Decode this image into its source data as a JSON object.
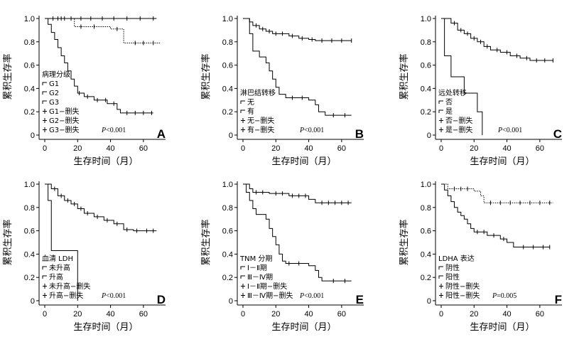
{
  "chart_data": [
    {
      "type": "line",
      "panel": "A",
      "ylabel": "累积生存率",
      "xlabel": "生存时间（月）",
      "xlim": [
        0,
        70
      ],
      "ylim": [
        0,
        1.0
      ],
      "xticks": [
        "0",
        "20",
        "40",
        "60"
      ],
      "yticks": [
        "0",
        "0.2",
        "0.4",
        "0.6",
        "0.8",
        "1.0"
      ],
      "legend_title": "病理分级",
      "legend_items": [
        "G1",
        "G2",
        "G3",
        "G1−删失",
        "G2−删失",
        "G3−删失"
      ],
      "p_value": "<0.001",
      "p_label": "P",
      "series": [
        {
          "style": "solid",
          "points": [
            [
              0,
              1.0
            ],
            [
              60,
              1.0
            ],
            [
              68,
              1.0
            ]
          ],
          "censor": [
            5,
            8,
            12,
            16,
            22,
            28,
            35,
            42,
            50,
            58,
            66
          ]
        },
        {
          "style": "dotted",
          "points": [
            [
              0,
              1.0
            ],
            [
              15,
              1.0
            ],
            [
              18,
              0.93
            ],
            [
              38,
              0.93
            ],
            [
              40,
              0.91
            ],
            [
              46,
              0.91
            ],
            [
              48,
              0.79
            ],
            [
              70,
              0.79
            ]
          ],
          "censor": [
            10,
            22,
            30,
            44,
            55,
            60,
            66
          ]
        },
        {
          "style": "solid",
          "points": [
            [
              0,
              1.0
            ],
            [
              2,
              0.95
            ],
            [
              4,
              0.88
            ],
            [
              6,
              0.82
            ],
            [
              8,
              0.75
            ],
            [
              10,
              0.68
            ],
            [
              12,
              0.62
            ],
            [
              14,
              0.55
            ],
            [
              16,
              0.48
            ],
            [
              18,
              0.42
            ],
            [
              20,
              0.36
            ],
            [
              24,
              0.33
            ],
            [
              30,
              0.3
            ],
            [
              38,
              0.27
            ],
            [
              44,
              0.22
            ],
            [
              46,
              0.19
            ],
            [
              66,
              0.19
            ]
          ],
          "censor": [
            21,
            26,
            32,
            37,
            42,
            50,
            55,
            60,
            65
          ]
        }
      ]
    },
    {
      "type": "line",
      "panel": "B",
      "ylabel": "累积生存率",
      "xlabel": "生存时间（月）",
      "xlim": [
        0,
        70
      ],
      "ylim": [
        0,
        1.0
      ],
      "xticks": [
        "0",
        "20",
        "40",
        "60"
      ],
      "yticks": [
        "0",
        "0.2",
        "0.4",
        "0.6",
        "0.8",
        "1.0"
      ],
      "legend_title": "淋巴结转移",
      "legend_items": [
        "无",
        "有",
        "无−删失",
        "有−删失"
      ],
      "p_value": "<0.001",
      "p_label": "P",
      "series": [
        {
          "style": "solid",
          "points": [
            [
              0,
              1.0
            ],
            [
              4,
              0.97
            ],
            [
              6,
              0.94
            ],
            [
              10,
              0.91
            ],
            [
              14,
              0.89
            ],
            [
              18,
              0.87
            ],
            [
              28,
              0.85
            ],
            [
              34,
              0.83
            ],
            [
              40,
              0.82
            ],
            [
              44,
              0.81
            ],
            [
              66,
              0.81
            ]
          ],
          "censor": [
            8,
            12,
            16,
            20,
            24,
            30,
            36,
            42,
            48,
            54,
            60,
            66
          ]
        },
        {
          "style": "solid",
          "points": [
            [
              0,
              1.0
            ],
            [
              4,
              0.87
            ],
            [
              6,
              0.72
            ],
            [
              10,
              0.67
            ],
            [
              14,
              0.62
            ],
            [
              16,
              0.55
            ],
            [
              18,
              0.48
            ],
            [
              20,
              0.41
            ],
            [
              22,
              0.35
            ],
            [
              26,
              0.32
            ],
            [
              40,
              0.3
            ],
            [
              44,
              0.26
            ],
            [
              46,
              0.2
            ],
            [
              50,
              0.17
            ],
            [
              66,
              0.17
            ]
          ],
          "censor": [
            30,
            36,
            55,
            62
          ]
        }
      ]
    },
    {
      "type": "line",
      "panel": "C",
      "ylabel": "累积生存率",
      "xlabel": "生存时间（月）",
      "xlim": [
        0,
        70
      ],
      "ylim": [
        0,
        1.0
      ],
      "xticks": [
        "0",
        "20",
        "40",
        "60"
      ],
      "yticks": [
        "0",
        "0.2",
        "0.4",
        "0.6",
        "0.8",
        "1.0"
      ],
      "legend_title": "远处转移",
      "legend_items": [
        "否",
        "是",
        "否−删失",
        "是−删失"
      ],
      "p_value": "<0.001",
      "p_label": "P",
      "series": [
        {
          "style": "solid",
          "points": [
            [
              0,
              1.0
            ],
            [
              6,
              0.96
            ],
            [
              10,
              0.9
            ],
            [
              14,
              0.87
            ],
            [
              18,
              0.83
            ],
            [
              22,
              0.8
            ],
            [
              26,
              0.76
            ],
            [
              30,
              0.73
            ],
            [
              36,
              0.71
            ],
            [
              42,
              0.68
            ],
            [
              48,
              0.66
            ],
            [
              54,
              0.64
            ],
            [
              68,
              0.64
            ]
          ],
          "censor": [
            8,
            12,
            16,
            20,
            24,
            28,
            34,
            40,
            46,
            52,
            58,
            63,
            68
          ]
        },
        {
          "style": "solid",
          "points": [
            [
              0,
              1.0
            ],
            [
              2,
              0.68
            ],
            [
              6,
              0.5
            ],
            [
              10,
              0.5
            ],
            [
              13,
              0.5
            ],
            [
              14,
              0.36
            ],
            [
              18,
              0.36
            ],
            [
              22,
              0.2
            ],
            [
              25,
              0.0
            ]
          ],
          "censor": []
        }
      ]
    },
    {
      "type": "line",
      "panel": "D",
      "ylabel": "累积生存率",
      "xlabel": "生存时间（月）",
      "xlim": [
        0,
        70
      ],
      "ylim": [
        0,
        1.0
      ],
      "xticks": [
        "0",
        "20",
        "40",
        "60"
      ],
      "yticks": [
        "0",
        "0.2",
        "0.4",
        "0.6",
        "0.8",
        "1.0"
      ],
      "legend_title": "血清 LDH",
      "legend_items": [
        "未升高",
        "升高",
        "未升高−删失",
        "升高−删失"
      ],
      "p_value": "<0.001",
      "p_label": "P",
      "series": [
        {
          "style": "solid",
          "points": [
            [
              0,
              1.0
            ],
            [
              4,
              0.96
            ],
            [
              8,
              0.9
            ],
            [
              12,
              0.86
            ],
            [
              16,
              0.83
            ],
            [
              20,
              0.79
            ],
            [
              24,
              0.75
            ],
            [
              30,
              0.72
            ],
            [
              36,
              0.69
            ],
            [
              42,
              0.66
            ],
            [
              48,
              0.61
            ],
            [
              54,
              0.6
            ],
            [
              68,
              0.6
            ]
          ],
          "censor": [
            6,
            10,
            14,
            18,
            22,
            26,
            32,
            38,
            44,
            50,
            56,
            62,
            66
          ]
        },
        {
          "style": "solid",
          "points": [
            [
              0,
              1.0
            ],
            [
              2,
              0.86
            ],
            [
              4,
              0.43
            ],
            [
              18,
              0.43
            ],
            [
              20,
              0.0
            ]
          ],
          "censor": []
        }
      ]
    },
    {
      "type": "line",
      "panel": "E",
      "ylabel": "累积生存率",
      "xlabel": "生存时间（月）",
      "xlim": [
        0,
        70
      ],
      "ylim": [
        0,
        1.0
      ],
      "xticks": [
        "0",
        "20",
        "40",
        "60"
      ],
      "yticks": [
        "0",
        "0.2",
        "0.4",
        "0.6",
        "0.8",
        "1.0"
      ],
      "legend_title": "TNM 分期",
      "legend_items": [
        "Ⅰ－Ⅱ期",
        "Ⅲ－Ⅳ期",
        "Ⅰ－Ⅱ期−删失",
        "Ⅲ－Ⅳ期−删失"
      ],
      "p_value": "<0.001",
      "p_label": "P",
      "series": [
        {
          "style": "solid",
          "points": [
            [
              0,
              1.0
            ],
            [
              4,
              0.96
            ],
            [
              6,
              0.93
            ],
            [
              16,
              0.92
            ],
            [
              28,
              0.9
            ],
            [
              40,
              0.87
            ],
            [
              44,
              0.84
            ],
            [
              66,
              0.84
            ]
          ],
          "censor": [
            8,
            12,
            20,
            24,
            30,
            34,
            38,
            48,
            52,
            56,
            60,
            64
          ]
        },
        {
          "style": "solid",
          "points": [
            [
              0,
              1.0
            ],
            [
              2,
              0.93
            ],
            [
              4,
              0.86
            ],
            [
              6,
              0.79
            ],
            [
              8,
              0.74
            ],
            [
              14,
              0.7
            ],
            [
              16,
              0.62
            ],
            [
              18,
              0.55
            ],
            [
              20,
              0.48
            ],
            [
              22,
              0.4
            ],
            [
              24,
              0.34
            ],
            [
              26,
              0.32
            ],
            [
              40,
              0.3
            ],
            [
              44,
              0.26
            ],
            [
              46,
              0.2
            ],
            [
              48,
              0.17
            ],
            [
              66,
              0.17
            ]
          ],
          "censor": [
            28,
            34,
            55,
            62
          ]
        }
      ]
    },
    {
      "type": "line",
      "panel": "F",
      "ylabel": "累积生存率",
      "xlabel": "生存时间（月）",
      "xlim": [
        0,
        70
      ],
      "ylim": [
        0,
        1.0
      ],
      "xticks": [
        "0",
        "20",
        "40",
        "60"
      ],
      "yticks": [
        "0",
        "0.2",
        "0.4",
        "0.6",
        "0.8",
        "1.0"
      ],
      "legend_title": "LDHA 表达",
      "legend_items": [
        "阴性",
        "阳性",
        "阴性−删失",
        "阳性−删失"
      ],
      "p_value": "=0.005",
      "p_label": "P",
      "series": [
        {
          "style": "dotted",
          "points": [
            [
              0,
              1.0
            ],
            [
              4,
              0.96
            ],
            [
              20,
              0.94
            ],
            [
              24,
              0.9
            ],
            [
              26,
              0.84
            ],
            [
              68,
              0.84
            ]
          ],
          "censor": [
            8,
            12,
            16,
            30,
            36,
            42,
            48,
            54,
            60,
            66
          ]
        },
        {
          "style": "solid",
          "points": [
            [
              0,
              1.0
            ],
            [
              2,
              0.95
            ],
            [
              4,
              0.9
            ],
            [
              6,
              0.85
            ],
            [
              8,
              0.8
            ],
            [
              10,
              0.76
            ],
            [
              12,
              0.73
            ],
            [
              14,
              0.7
            ],
            [
              16,
              0.66
            ],
            [
              18,
              0.62
            ],
            [
              20,
              0.59
            ],
            [
              28,
              0.56
            ],
            [
              36,
              0.53
            ],
            [
              40,
              0.5
            ],
            [
              44,
              0.46
            ],
            [
              66,
              0.46
            ]
          ],
          "censor": [
            22,
            26,
            32,
            38,
            50,
            56,
            62,
            66
          ]
        }
      ]
    }
  ]
}
